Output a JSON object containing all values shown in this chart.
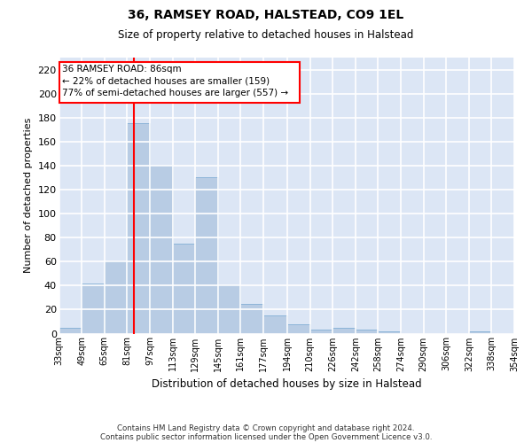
{
  "title1": "36, RAMSEY ROAD, HALSTEAD, CO9 1EL",
  "title2": "Size of property relative to detached houses in Halstead",
  "xlabel": "Distribution of detached houses by size in Halstead",
  "ylabel": "Number of detached properties",
  "footnote1": "Contains HM Land Registry data © Crown copyright and database right 2024.",
  "footnote2": "Contains public sector information licensed under the Open Government Licence v3.0.",
  "bar_color": "#b8cce4",
  "bar_edge_color": "#8db4d8",
  "bg_color": "#dce6f5",
  "grid_color": "#ffffff",
  "redline_x": 86,
  "annotation_line1": "36 RAMSEY ROAD: 86sqm",
  "annotation_line2": "← 22% of detached houses are smaller (159)",
  "annotation_line3": "77% of semi-detached houses are larger (557) →",
  "ylim": [
    0,
    230
  ],
  "yticks": [
    0,
    20,
    40,
    60,
    80,
    100,
    120,
    140,
    160,
    180,
    200,
    220
  ],
  "tick_labels": [
    "33sqm",
    "49sqm",
    "65sqm",
    "81sqm",
    "97sqm",
    "113sqm",
    "129sqm",
    "145sqm",
    "161sqm",
    "177sqm",
    "194sqm",
    "210sqm",
    "226sqm",
    "242sqm",
    "258sqm",
    "274sqm",
    "290sqm",
    "306sqm",
    "322sqm",
    "338sqm",
    "354sqm"
  ],
  "bin_lefts": [
    33,
    49,
    65,
    81,
    97,
    113,
    129,
    145,
    161,
    177,
    194,
    210,
    226,
    242,
    258,
    274,
    290,
    306,
    322,
    338
  ],
  "bin_rights": [
    49,
    65,
    81,
    97,
    113,
    129,
    145,
    161,
    177,
    194,
    210,
    226,
    242,
    258,
    274,
    290,
    306,
    322,
    338,
    354
  ],
  "bar_heights": [
    5,
    42,
    60,
    175,
    140,
    75,
    130,
    40,
    25,
    15,
    8,
    3,
    5,
    3,
    2,
    0,
    0,
    0,
    2,
    0
  ]
}
